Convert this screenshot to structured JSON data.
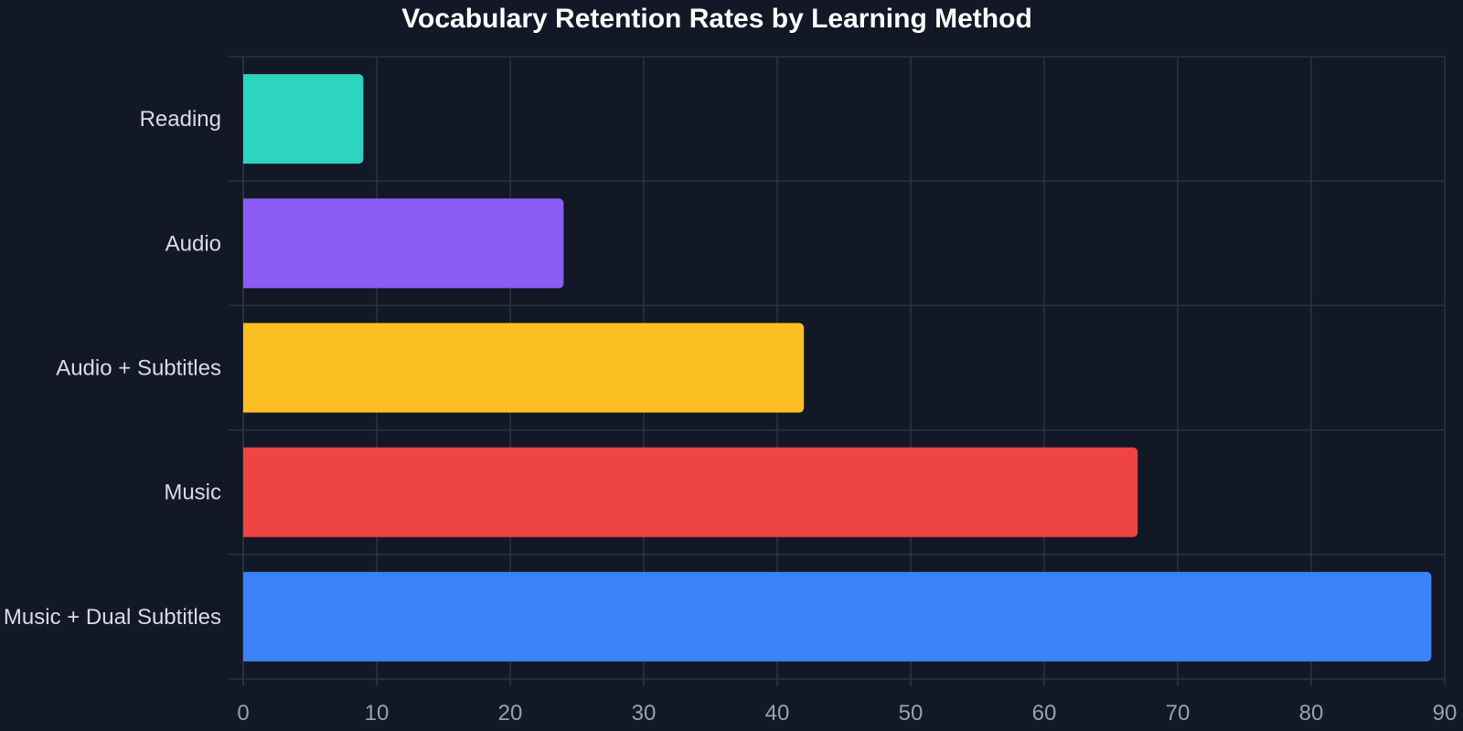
{
  "chart_data": {
    "type": "bar",
    "orientation": "horizontal",
    "title": "Vocabulary Retention Rates by Learning Method",
    "xlabel": "",
    "ylabel": "",
    "categories": [
      "Reading",
      "Audio",
      "Audio + Subtitles",
      "Music",
      "Music + Dual Subtitles"
    ],
    "values": [
      9,
      24,
      42,
      67,
      89
    ],
    "colors": [
      "#2dd4bf",
      "#8b5cf6",
      "#fbbf24",
      "#ef4444",
      "#3b82f6"
    ],
    "xlim": [
      0,
      90
    ],
    "xticks": [
      0,
      10,
      20,
      30,
      40,
      50,
      60,
      70,
      80,
      90
    ],
    "grid": true,
    "legend": "none"
  }
}
